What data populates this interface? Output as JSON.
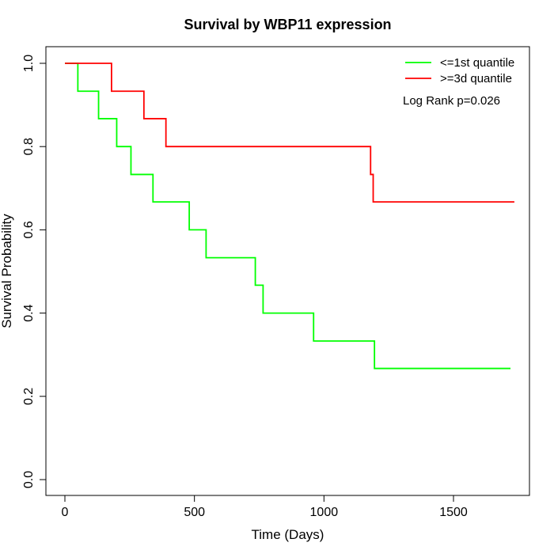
{
  "chart_data": {
    "type": "line",
    "title": "Survival by WBP11 expression",
    "xlabel": "Time (Days)",
    "ylabel": "Survival Probability",
    "xlim": [
      0,
      1800
    ],
    "ylim": [
      0,
      1.0
    ],
    "x_ticks": [
      0,
      500,
      1000,
      1500
    ],
    "x_tick_labels": [
      "0",
      "500",
      "1000",
      "1500"
    ],
    "y_ticks": [
      0.0,
      0.2,
      0.4,
      0.6,
      0.8,
      1.0
    ],
    "y_tick_labels": [
      "0.0",
      "0.2",
      "0.4",
      "0.6",
      "0.8",
      "1.0"
    ],
    "grid": false,
    "legend_position": "top-right",
    "annotation": "Log Rank p=0.026",
    "series": [
      {
        "name": "<=1st quantile",
        "color": "#00ff00",
        "step": true,
        "x": [
          0,
          50,
          130,
          200,
          255,
          340,
          480,
          545,
          735,
          765,
          960,
          1195,
          1720
        ],
        "y": [
          1.0,
          0.933,
          0.867,
          0.8,
          0.733,
          0.667,
          0.6,
          0.533,
          0.467,
          0.4,
          0.333,
          0.267,
          0.267
        ]
      },
      {
        "name": ">=3d quantile",
        "color": "#ff0000",
        "step": true,
        "x": [
          0,
          180,
          305,
          390,
          1180,
          1190,
          1735
        ],
        "y": [
          1.0,
          0.933,
          0.867,
          0.8,
          0.733,
          0.667,
          0.667
        ]
      }
    ]
  }
}
